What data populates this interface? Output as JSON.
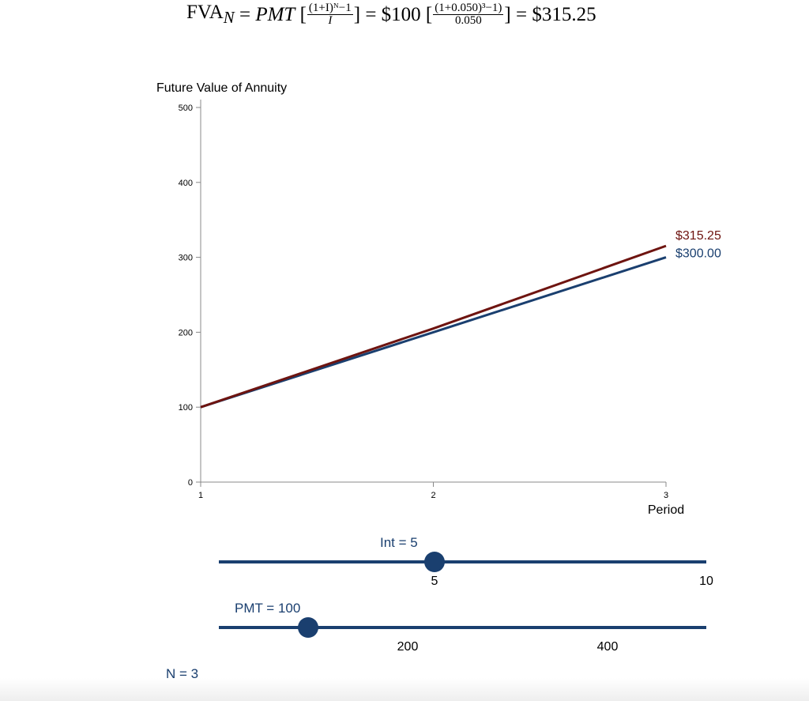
{
  "formula": {
    "lhs": "FVA",
    "lhs_sub": "N",
    "eq1": "=",
    "pmt": "PMT",
    "frac1_num": "(1+I)ᴺ−1",
    "frac1_den": "I",
    "eq2": "= $100",
    "frac2_num": "(1+0.050)³−1)",
    "frac2_den": "0.050",
    "result": "= $315.25"
  },
  "colors": {
    "fva": "#6e1410",
    "simple": "#1a3f6f",
    "slider": "#1a3f6f"
  },
  "chart_data": {
    "type": "line",
    "ylabel": "Future Value of Annuity",
    "xlabel": "Period",
    "x": [
      1,
      2,
      3
    ],
    "xticks": [
      "1",
      "2",
      "3"
    ],
    "yticks": [
      "0",
      "100",
      "200",
      "300",
      "400",
      "500"
    ],
    "ylim": [
      0,
      500
    ],
    "xlim": [
      1,
      3
    ],
    "series": [
      {
        "key": "simple",
        "values": [
          100,
          200,
          300
        ],
        "end_label": "$300.00"
      },
      {
        "key": "fva",
        "values": [
          100,
          205,
          315.25
        ],
        "end_label": "$315.25"
      }
    ]
  },
  "sliders": [
    {
      "label": "Int = 5",
      "value": 5,
      "ticks": [
        "5",
        "10"
      ]
    },
    {
      "label": "PMT = 100",
      "value": 100,
      "ticks": [
        "200",
        "400"
      ]
    },
    {
      "label": "N = 3",
      "value": 3,
      "ticks": []
    }
  ]
}
